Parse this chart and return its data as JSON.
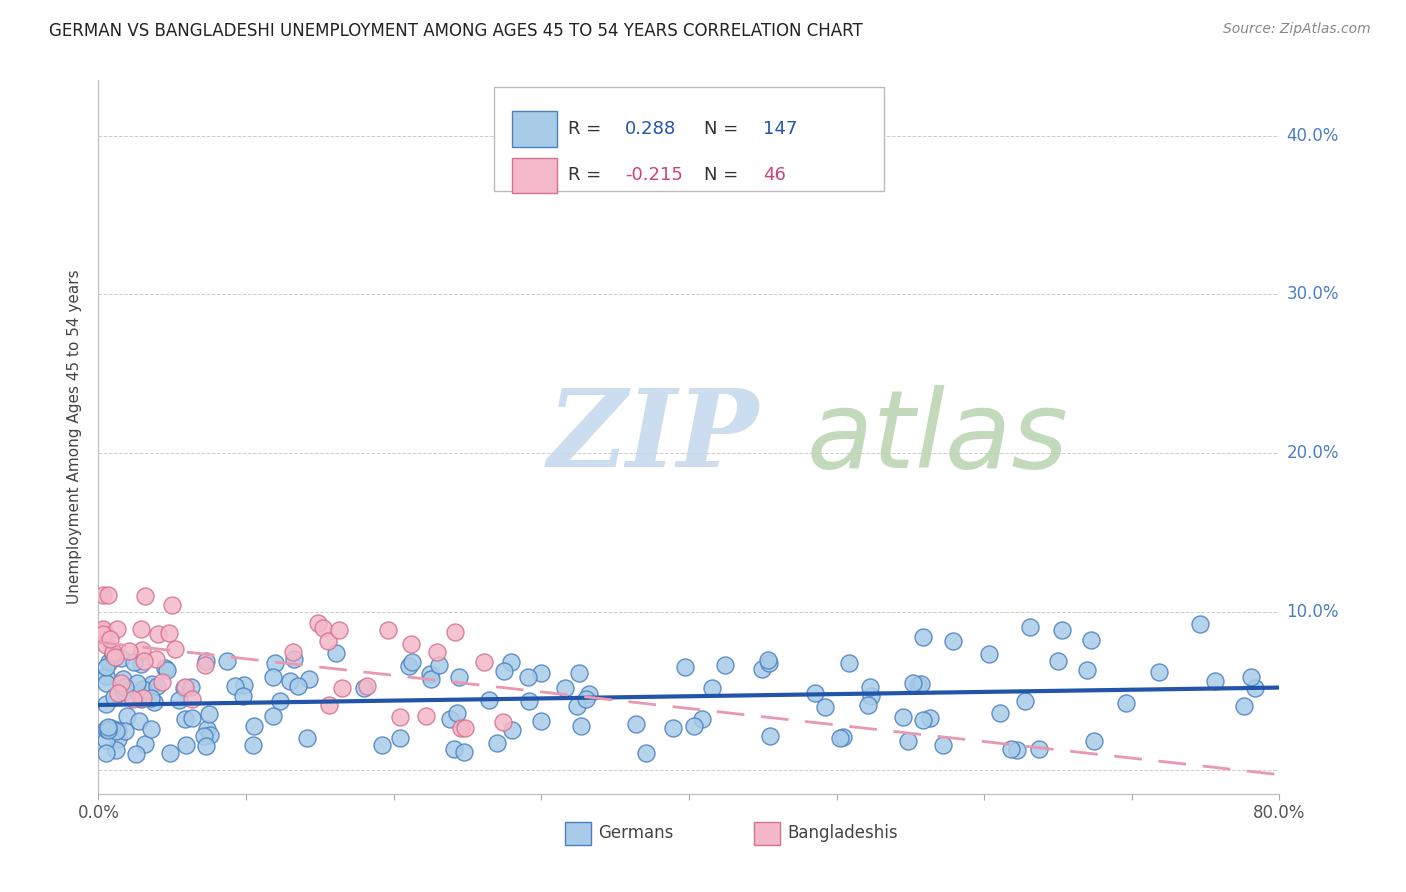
{
  "title": "GERMAN VS BANGLADESHI UNEMPLOYMENT AMONG AGES 45 TO 54 YEARS CORRELATION CHART",
  "source": "Source: ZipAtlas.com",
  "ylabel": "Unemployment Among Ages 45 to 54 years",
  "xlim": [
    0.0,
    0.8
  ],
  "ylim": [
    -0.015,
    0.435
  ],
  "german_R": 0.288,
  "german_N": 147,
  "bangla_R": -0.215,
  "bangla_N": 46,
  "german_face_color": "#a8cce8",
  "german_edge_color": "#4a7fc1",
  "bangla_face_color": "#f4b8c8",
  "bangla_edge_color": "#d47090",
  "german_line_color": "#2255aa",
  "bangla_line_color": "#e898b0",
  "watermark_zip_color": "#c8d8ee",
  "watermark_atlas_color": "#b8d4b8",
  "background_color": "#ffffff",
  "grid_color": "#cccccc",
  "ytick_color": "#4a7fc1",
  "xtick_color": "#555555",
  "title_color": "#222222",
  "source_color": "#888888",
  "ylabel_color": "#444444"
}
